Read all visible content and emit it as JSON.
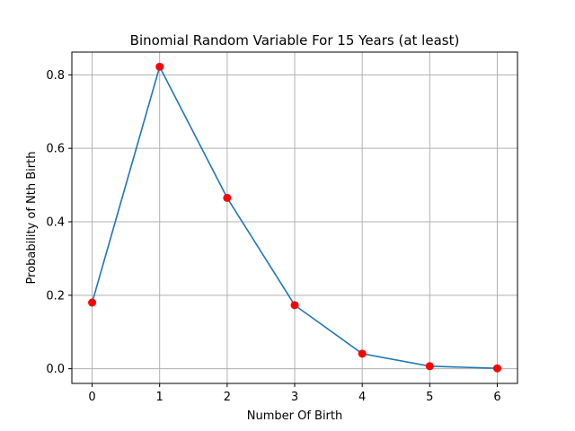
{
  "chart_data": {
    "type": "line",
    "title": "Binomial Random Variable For 15 Years (at least)",
    "xlabel": "Number Of Birth",
    "ylabel": "Probability of Nth Birth",
    "x": [
      0,
      1,
      2,
      3,
      4,
      5,
      6
    ],
    "series": [
      {
        "values": [
          0.18,
          0.822,
          0.465,
          0.173,
          0.041,
          0.007,
          0.001
        ]
      }
    ],
    "xlim": [
      -0.3,
      6.3
    ],
    "ylim": [
      -0.04,
      0.862
    ],
    "xticks": [
      "0",
      "1",
      "2",
      "3",
      "4",
      "5",
      "6"
    ],
    "yticks": [
      "0.0",
      "0.2",
      "0.4",
      "0.6",
      "0.8"
    ],
    "grid": true,
    "line_color": "#1f77b4",
    "marker_color": "#ff0000"
  }
}
